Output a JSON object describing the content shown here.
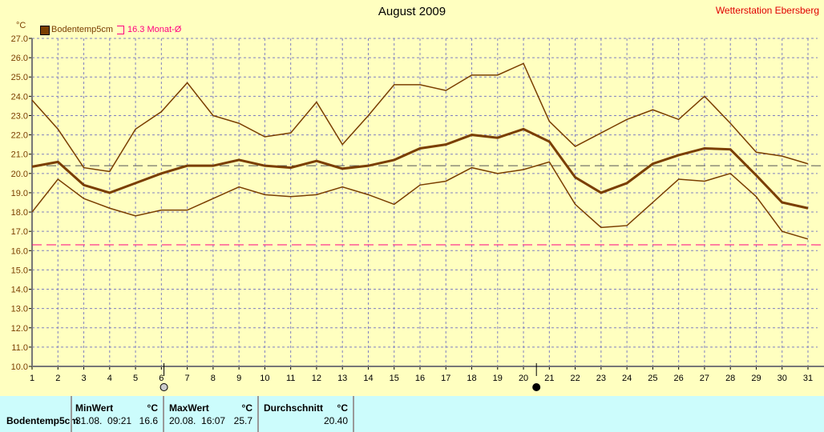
{
  "header": {
    "title": "August 2009",
    "station": "Wetterstation Ebersberg"
  },
  "legend": {
    "unit": "°C",
    "series_label": "Bodentemp5cm",
    "normal_label": "16.3 Monat-Ø"
  },
  "chart_data": {
    "type": "line",
    "title": "August 2009",
    "ylabel": "°C",
    "ylim": [
      10,
      27
    ],
    "yticks": [
      "10.0",
      "11.0",
      "12.0",
      "13.0",
      "14.0",
      "15.0",
      "16.0",
      "17.0",
      "18.0",
      "19.0",
      "20.0",
      "21.0",
      "22.0",
      "23.0",
      "24.0",
      "25.0",
      "26.0",
      "27.0"
    ],
    "x": [
      1,
      2,
      3,
      4,
      5,
      6,
      7,
      8,
      9,
      10,
      11,
      12,
      13,
      14,
      15,
      16,
      17,
      18,
      19,
      20,
      21,
      22,
      23,
      24,
      25,
      26,
      27,
      28,
      29,
      30,
      31
    ],
    "series": [
      {
        "name": "Bodentemp5cm max",
        "values": [
          23.8,
          22.3,
          20.3,
          20.1,
          22.3,
          23.2,
          24.7,
          23.0,
          22.6,
          21.9,
          22.1,
          23.7,
          21.5,
          23.0,
          24.6,
          24.6,
          24.3,
          25.1,
          25.1,
          25.7,
          22.7,
          21.4,
          22.1,
          22.8,
          23.3,
          22.8,
          24.0,
          22.6,
          21.1,
          20.9,
          20.5
        ]
      },
      {
        "name": "Bodentemp5cm",
        "values": [
          20.35,
          20.6,
          19.4,
          19.0,
          19.5,
          20.0,
          20.4,
          20.4,
          20.7,
          20.4,
          20.3,
          20.65,
          20.25,
          20.4,
          20.7,
          21.3,
          21.5,
          22.0,
          21.85,
          22.3,
          21.65,
          19.8,
          19.0,
          19.5,
          20.5,
          20.95,
          21.3,
          21.25,
          19.9,
          18.5,
          18.2
        ]
      },
      {
        "name": "Bodentemp5cm min",
        "values": [
          18.0,
          19.7,
          18.7,
          18.2,
          17.8,
          18.1,
          18.1,
          18.7,
          19.3,
          18.9,
          18.8,
          18.9,
          19.3,
          18.9,
          18.4,
          19.4,
          19.6,
          20.3,
          20.0,
          20.2,
          20.6,
          18.4,
          17.2,
          17.3,
          18.5,
          19.7,
          19.6,
          20.0,
          18.8,
          17.0,
          16.6
        ]
      }
    ],
    "reference_lines": [
      {
        "name": "Durchschnitt",
        "value": 20.4
      },
      {
        "name": "Monat-Ø",
        "value": 16.3
      }
    ],
    "moon_phases": [
      {
        "day": 6.1,
        "phase": "full"
      },
      {
        "day": 20.5,
        "phase": "new"
      }
    ],
    "grid": true,
    "legend_position": "top-left"
  },
  "colors": {
    "series": "#7a3e00",
    "normal": "#ff0080",
    "grid": "#8080c0",
    "bg": "#ffffc0"
  },
  "table": {
    "row_label": "Bodentemp5cm",
    "min": {
      "header": "MinWert",
      "unit": "°C",
      "date": "31.08.  09:21",
      "value": "16.6"
    },
    "max": {
      "header": "MaxWert",
      "unit": "°C",
      "date": "20.08.  16:07",
      "value": "25.7"
    },
    "avg": {
      "header": "Durchschnitt",
      "unit": "°C",
      "value": "20.40"
    }
  }
}
